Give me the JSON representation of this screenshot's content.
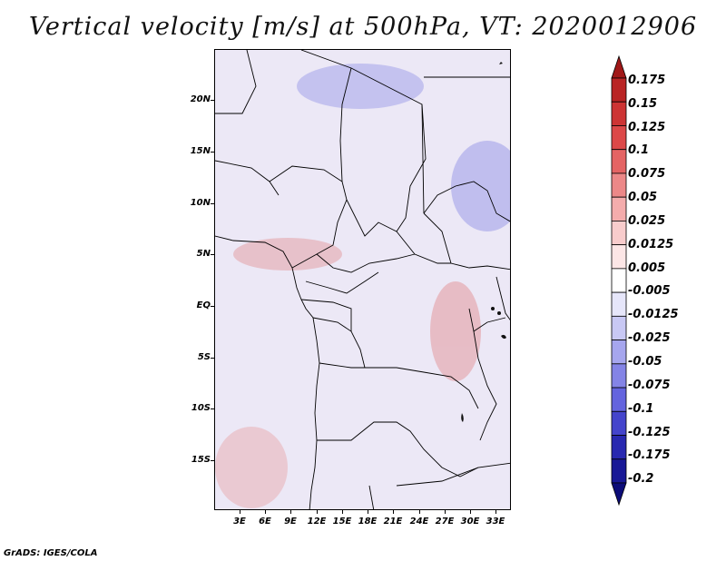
{
  "title": "Vertical velocity [m/s] at 500hPa, VT: 2020012906",
  "map": {
    "lat_labels": [
      "20N",
      "15N",
      "10N",
      "5N",
      "EQ",
      "5S",
      "10S",
      "15S"
    ],
    "lon_labels": [
      "3E",
      "6E",
      "9E",
      "12E",
      "15E",
      "18E",
      "21E",
      "24E",
      "27E",
      "30E",
      "33E"
    ]
  },
  "colorbar": {
    "labels": [
      "0.175",
      "0.15",
      "0.125",
      "0.1",
      "0.075",
      "0.05",
      "0.025",
      "0.0125",
      "0.005",
      "-0.005",
      "-0.0125",
      "-0.025",
      "-0.05",
      "-0.075",
      "-0.1",
      "-0.125",
      "-0.175",
      "-0.2"
    ],
    "colors": [
      "#a01818",
      "#b92424",
      "#cd3434",
      "#dc4848",
      "#e46464",
      "#ec8888",
      "#f4acac",
      "#f8cccc",
      "#fce6e6",
      "#ffffff",
      "#e6e6fa",
      "#c8c8f4",
      "#a6a6ee",
      "#8484e6",
      "#6464de",
      "#4444cc",
      "#2828b0",
      "#181896",
      "#0c0c78"
    ]
  },
  "footer": "GrADS: IGES/COLA"
}
